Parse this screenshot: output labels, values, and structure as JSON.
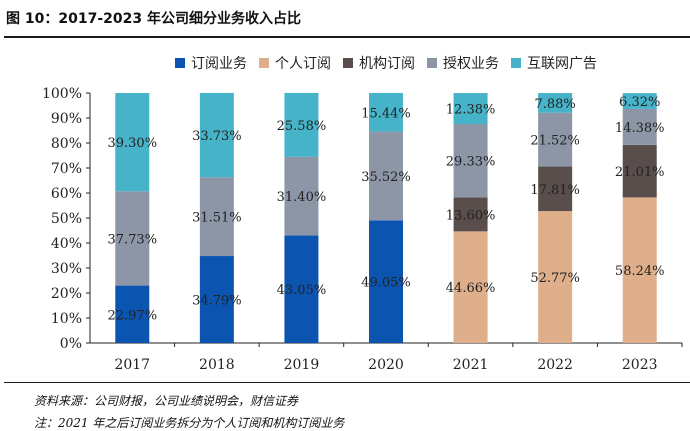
{
  "header": {
    "title": "图 10：2017-2023 年公司细分业务收入占比"
  },
  "footer": {
    "source": "资料来源：公司财报，公司业绩说明会，财信证券",
    "note": "注：2021 年之后订阅业务拆分为个人订阅和机构订阅业务"
  },
  "chart_data": {
    "type": "bar",
    "stacked": true,
    "title": "",
    "xlabel": "",
    "ylabel": "",
    "ylim": [
      0,
      100
    ],
    "yticks": [
      "0%",
      "10%",
      "20%",
      "30%",
      "40%",
      "50%",
      "60%",
      "70%",
      "80%",
      "90%",
      "100%"
    ],
    "categories": [
      "2017",
      "2018",
      "2019",
      "2020",
      "2021",
      "2022",
      "2023"
    ],
    "legend_position": "top",
    "series": [
      {
        "name": "订阅业务",
        "color": "#0b55b0",
        "values": [
          22.97,
          34.79,
          43.05,
          49.05,
          null,
          null,
          null
        ]
      },
      {
        "name": "个人订阅",
        "color": "#dfae8a",
        "values": [
          null,
          null,
          null,
          null,
          44.66,
          52.77,
          58.24
        ]
      },
      {
        "name": "机构订阅",
        "color": "#5a4e4c",
        "values": [
          null,
          null,
          null,
          null,
          13.6,
          17.81,
          21.01
        ]
      },
      {
        "name": "授权业务",
        "color": "#8c96a6",
        "values": [
          37.73,
          31.51,
          31.4,
          35.52,
          29.33,
          21.52,
          14.38
        ]
      },
      {
        "name": "互联网广告",
        "color": "#46b3c9",
        "values": [
          39.3,
          33.73,
          25.58,
          15.44,
          12.38,
          7.88,
          6.32
        ]
      }
    ],
    "data_labels": [
      [
        "22.97%",
        null,
        null,
        "37.73%",
        "39.30%"
      ],
      [
        "34.79%",
        null,
        null,
        "31.51%",
        "33.73%"
      ],
      [
        "43.05%",
        null,
        null,
        "31.40%",
        "25.58%"
      ],
      [
        "49.05%",
        null,
        null,
        "35.52%",
        "15.44%"
      ],
      [
        null,
        "44.66%",
        "13.60%",
        "29.33%",
        "12.38%"
      ],
      [
        null,
        "52.77%",
        "17.81%",
        "21.52%",
        "7.88%"
      ],
      [
        null,
        "58.24%",
        "21.01%",
        "14.38%",
        "6.32%"
      ]
    ]
  }
}
